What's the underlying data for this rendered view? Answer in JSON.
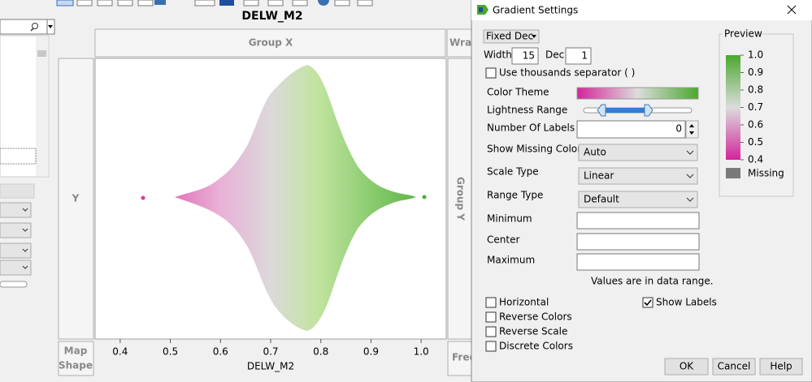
{
  "graph": {
    "title": "DELW_M2",
    "group_x": "Group X",
    "wrap": "Wrap",
    "y_zone": "Y",
    "group_y": "Group Y",
    "map_shape": [
      "Map",
      "Shape"
    ],
    "freq": "Freq",
    "x_axis": {
      "label": "DELW_M2",
      "xlim": [
        0.35,
        1.05
      ],
      "xticks": [
        0.4,
        0.5,
        0.6,
        0.7,
        0.8,
        0.9,
        {
          "value": 1,
          "label": "1.0"
        }
      ]
    }
  },
  "dialog": {
    "title": "Gradient Settings",
    "format": "Fixed Dec",
    "width_label": "Width",
    "width_value": "15",
    "dec_label": "Dec",
    "dec_value": "1",
    "thousands_separator": {
      "label": "Use thousands separator ( )",
      "checked": false
    },
    "color_theme": "Color Theme",
    "lightness_range": "Lightness Range",
    "number_of_labels": "Number Of Labels",
    "number_of_labels_value": "0",
    "show_missing_color": "Show Missing Color",
    "show_missing_color_value": "Auto",
    "scale_type": "Scale Type",
    "scale_type_value": "Linear",
    "range_type": "Range Type",
    "range_type_value": "Default",
    "minimum": "Minimum",
    "center": "Center",
    "maximum": "Maximum",
    "range_note": "Values are in data range.",
    "checkboxes": [
      {
        "label": "Horizontal",
        "checked": false
      },
      {
        "label": "Reverse Colors",
        "checked": false
      },
      {
        "label": "Reverse Scale",
        "checked": false
      },
      {
        "label": "Discrete Colors",
        "checked": false
      }
    ],
    "show_labels": {
      "label": "Show Labels",
      "checked": true
    },
    "buttons": [
      "OK",
      "Cancel",
      "Help"
    ],
    "preview": {
      "title": "Preview",
      "lim": [
        0.4,
        1
      ],
      "ticks": [
        {
          "value": 1,
          "label": "1.0"
        },
        0.9,
        0.8,
        0.7,
        0.6,
        0.5,
        0.4
      ],
      "missing": "Missing"
    }
  }
}
